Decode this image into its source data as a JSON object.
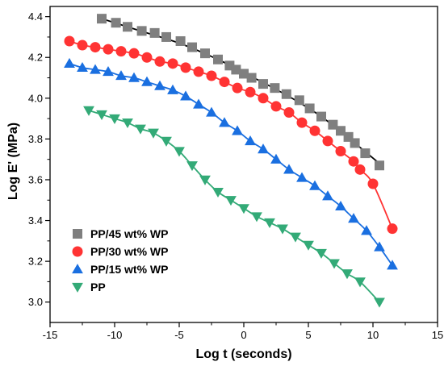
{
  "chart_data": {
    "type": "scatter",
    "title": "",
    "xlabel": "Log t (seconds)",
    "ylabel": "Log E' (MPa)",
    "xlim": [
      -15,
      15
    ],
    "ylim": [
      2.9,
      4.45
    ],
    "xticks": [
      -15,
      -10,
      -5,
      0,
      5,
      10,
      15
    ],
    "yticks": [
      3.0,
      3.2,
      3.4,
      3.6,
      3.8,
      4.0,
      4.2,
      4.4
    ],
    "xtick_labels": [
      "-15",
      "-10",
      "-5",
      "0",
      "5",
      "10",
      "15"
    ],
    "ytick_labels": [
      "3.0",
      "3.2",
      "3.4",
      "3.6",
      "3.8",
      "4.0",
      "4.2",
      "4.4"
    ],
    "grid": false,
    "legend_position": "bottom-left",
    "series": [
      {
        "name": "PP/45 wt% WP",
        "marker": "square",
        "color": "#7f7f7f",
        "fit_color": "#000000",
        "x": [
          -11.0,
          -9.9,
          -9.0,
          -7.9,
          -6.9,
          -6.0,
          -4.9,
          -4.0,
          -3.0,
          -2.0,
          -1.1,
          -0.6,
          0.0,
          0.6,
          1.5,
          2.4,
          3.3,
          4.3,
          5.1,
          6.0,
          6.9,
          7.5,
          8.1,
          8.6,
          9.4,
          10.5
        ],
        "y": [
          4.39,
          4.37,
          4.35,
          4.33,
          4.32,
          4.3,
          4.28,
          4.25,
          4.22,
          4.19,
          4.16,
          4.14,
          4.12,
          4.1,
          4.07,
          4.05,
          4.02,
          3.99,
          3.95,
          3.91,
          3.87,
          3.84,
          3.81,
          3.78,
          3.73,
          3.67
        ],
        "fit_x": [
          -11.0,
          -8.0,
          -5.0,
          -2.0,
          0.0,
          2.0,
          4.0,
          6.0,
          8.0,
          10.5
        ],
        "fit_y": [
          4.39,
          4.33,
          4.27,
          4.19,
          4.125,
          4.06,
          3.99,
          3.91,
          3.81,
          3.68
        ]
      },
      {
        "name": "PP/30 wt% WP",
        "marker": "circle",
        "color": "#ff3333",
        "fit_color": "#ff3333",
        "x": [
          -13.5,
          -12.5,
          -11.5,
          -10.5,
          -9.5,
          -8.5,
          -7.5,
          -6.5,
          -5.5,
          -4.5,
          -3.5,
          -2.5,
          -1.5,
          -0.5,
          0.5,
          1.5,
          2.5,
          3.5,
          4.5,
          5.5,
          6.5,
          7.5,
          8.5,
          9.0,
          10.0,
          11.5
        ],
        "y": [
          4.28,
          4.26,
          4.25,
          4.24,
          4.23,
          4.22,
          4.2,
          4.18,
          4.17,
          4.15,
          4.13,
          4.11,
          4.08,
          4.05,
          4.03,
          4.0,
          3.96,
          3.93,
          3.88,
          3.84,
          3.79,
          3.74,
          3.69,
          3.65,
          3.58,
          3.36
        ]
      },
      {
        "name": "PP/15 wt% WP",
        "marker": "triangle-up",
        "color": "#1a6fe0",
        "fit_color": "#1a6fe0",
        "x": [
          -13.5,
          -12.5,
          -11.5,
          -10.5,
          -9.5,
          -8.5,
          -7.5,
          -6.5,
          -5.5,
          -4.5,
          -3.5,
          -2.5,
          -1.5,
          -0.5,
          0.5,
          1.5,
          2.5,
          3.5,
          4.5,
          5.5,
          6.5,
          7.5,
          8.5,
          9.5,
          10.5,
          11.5
        ],
        "y": [
          4.17,
          4.15,
          4.14,
          4.13,
          4.11,
          4.1,
          4.08,
          4.06,
          4.04,
          4.01,
          3.97,
          3.93,
          3.88,
          3.84,
          3.79,
          3.75,
          3.7,
          3.65,
          3.61,
          3.57,
          3.52,
          3.47,
          3.41,
          3.35,
          3.27,
          3.18
        ]
      },
      {
        "name": "PP",
        "marker": "triangle-down",
        "color": "#33aa77",
        "fit_color": "#33aa77",
        "x": [
          -12.0,
          -11.0,
          -10.0,
          -9.0,
          -8.0,
          -7.0,
          -6.0,
          -5.0,
          -4.0,
          -3.0,
          -2.0,
          -1.0,
          0.0,
          1.0,
          2.0,
          3.0,
          4.0,
          5.0,
          6.0,
          7.0,
          8.0,
          9.0,
          10.5
        ],
        "y": [
          3.94,
          3.92,
          3.9,
          3.88,
          3.85,
          3.83,
          3.79,
          3.74,
          3.67,
          3.6,
          3.54,
          3.5,
          3.46,
          3.42,
          3.39,
          3.36,
          3.32,
          3.28,
          3.24,
          3.19,
          3.14,
          3.1,
          3.0
        ]
      }
    ]
  }
}
